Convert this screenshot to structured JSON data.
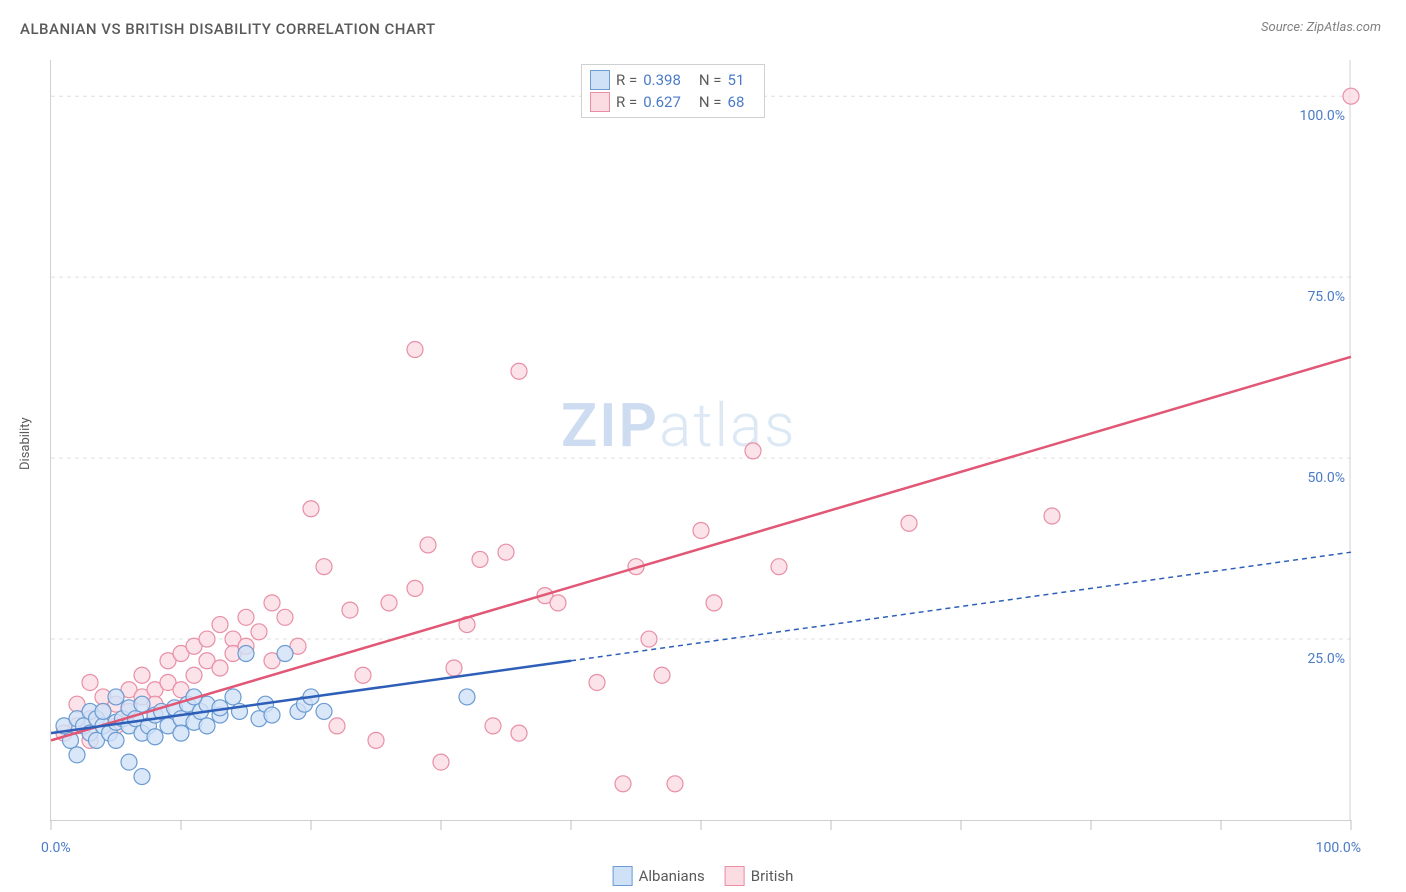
{
  "title": "ALBANIAN VS BRITISH DISABILITY CORRELATION CHART",
  "source_prefix": "Source: ",
  "source": "ZipAtlas.com",
  "ylabel": "Disability",
  "watermark_bold": "ZIP",
  "watermark_rest": "atlas",
  "chart": {
    "type": "scatter",
    "xlim": [
      0,
      100
    ],
    "ylim": [
      0,
      105
    ],
    "grid_y": [
      25,
      50,
      75,
      100
    ],
    "grid_color": "#e0e0e0",
    "background_color": "#ffffff",
    "x_tick_label_min": "0.0%",
    "x_tick_label_max": "100.0%",
    "y_tick_labels": [
      "25.0%",
      "50.0%",
      "75.0%",
      "100.0%"
    ],
    "x_ticks": [
      0,
      10,
      20,
      30,
      40,
      50,
      60,
      70,
      80,
      90,
      100
    ],
    "label_color": "#4a7bc8",
    "axis_color": "#d0d0d0",
    "marker_radius": 8,
    "marker_stroke_width": 1.2,
    "line_width": 2.5,
    "series": [
      {
        "key": "albanians",
        "name": "Albanians",
        "R": "0.398",
        "N": "51",
        "fill": "#cfe1f7",
        "stroke": "#6b9bd1",
        "line_color": "#2e5fb8",
        "line_dash": "none",
        "trend": {
          "x0": 0,
          "y0": 12,
          "x1": 40,
          "y1": 22,
          "extend_x": 100,
          "extend_y": 37,
          "extend_dash": "5,4"
        },
        "points": [
          [
            1,
            13
          ],
          [
            1.5,
            11
          ],
          [
            2,
            14
          ],
          [
            2,
            9
          ],
          [
            2.5,
            13
          ],
          [
            3,
            15
          ],
          [
            3,
            12
          ],
          [
            3.5,
            11
          ],
          [
            3.5,
            14
          ],
          [
            4,
            13
          ],
          [
            4,
            15
          ],
          [
            4.5,
            12
          ],
          [
            5,
            13.5
          ],
          [
            5,
            11
          ],
          [
            5.5,
            14
          ],
          [
            6,
            13
          ],
          [
            6,
            15.5
          ],
          [
            6.5,
            14
          ],
          [
            7,
            12
          ],
          [
            7,
            16
          ],
          [
            7.5,
            13
          ],
          [
            8,
            14.5
          ],
          [
            8,
            11.5
          ],
          [
            8.5,
            15
          ],
          [
            9,
            13
          ],
          [
            9.5,
            15.5
          ],
          [
            10,
            14
          ],
          [
            10,
            12
          ],
          [
            10.5,
            16
          ],
          [
            11,
            13.5
          ],
          [
            11.5,
            15
          ],
          [
            12,
            16
          ],
          [
            12,
            13
          ],
          [
            13,
            14.5
          ],
          [
            13,
            15.5
          ],
          [
            14,
            17
          ],
          [
            14.5,
            15
          ],
          [
            15,
            23
          ],
          [
            16,
            14
          ],
          [
            16.5,
            16
          ],
          [
            17,
            14.5
          ],
          [
            18,
            23
          ],
          [
            19,
            15
          ],
          [
            19.5,
            16
          ],
          [
            20,
            17
          ],
          [
            21,
            15
          ],
          [
            6,
            8
          ],
          [
            7,
            6
          ],
          [
            5,
            17
          ],
          [
            11,
            17
          ],
          [
            32,
            17
          ]
        ]
      },
      {
        "key": "british",
        "name": "British",
        "R": "0.627",
        "N": "68",
        "fill": "#fbdce3",
        "stroke": "#e88fa5",
        "line_color": "#e15775",
        "line_dash": "none",
        "trend": {
          "x0": 0,
          "y0": 11,
          "x1": 100,
          "y1": 64
        },
        "points": [
          [
            1,
            12
          ],
          [
            2,
            13
          ],
          [
            2,
            16
          ],
          [
            3,
            14
          ],
          [
            3,
            11
          ],
          [
            4,
            15
          ],
          [
            4,
            17
          ],
          [
            5,
            16
          ],
          [
            5,
            13
          ],
          [
            6,
            18
          ],
          [
            6,
            15
          ],
          [
            7,
            17
          ],
          [
            7,
            20
          ],
          [
            8,
            18
          ],
          [
            8,
            16
          ],
          [
            9,
            22
          ],
          [
            9,
            19
          ],
          [
            10,
            18
          ],
          [
            10,
            23
          ],
          [
            11,
            20
          ],
          [
            11,
            24
          ],
          [
            12,
            22
          ],
          [
            12,
            25
          ],
          [
            13,
            21
          ],
          [
            13,
            27
          ],
          [
            14,
            25
          ],
          [
            14,
            23
          ],
          [
            15,
            24
          ],
          [
            15,
            28
          ],
          [
            16,
            26
          ],
          [
            17,
            22
          ],
          [
            17,
            30
          ],
          [
            18,
            28
          ],
          [
            19,
            24
          ],
          [
            20,
            43
          ],
          [
            21,
            35
          ],
          [
            22,
            13
          ],
          [
            23,
            29
          ],
          [
            24,
            20
          ],
          [
            25,
            11
          ],
          [
            26,
            30
          ],
          [
            28,
            32
          ],
          [
            28,
            65
          ],
          [
            29,
            38
          ],
          [
            30,
            8
          ],
          [
            31,
            21
          ],
          [
            32,
            27
          ],
          [
            33,
            36
          ],
          [
            34,
            13
          ],
          [
            35,
            37
          ],
          [
            36,
            62
          ],
          [
            36,
            12
          ],
          [
            38,
            31
          ],
          [
            39,
            30
          ],
          [
            42,
            19
          ],
          [
            44,
            5
          ],
          [
            45,
            35
          ],
          [
            46,
            25
          ],
          [
            47,
            20
          ],
          [
            48,
            5
          ],
          [
            50,
            40
          ],
          [
            51,
            30
          ],
          [
            54,
            51
          ],
          [
            56,
            35
          ],
          [
            66,
            41
          ],
          [
            77,
            42
          ],
          [
            100,
            100
          ],
          [
            3,
            19
          ]
        ]
      }
    ]
  },
  "legend": {
    "R_label": "R = ",
    "N_label": "N = "
  }
}
